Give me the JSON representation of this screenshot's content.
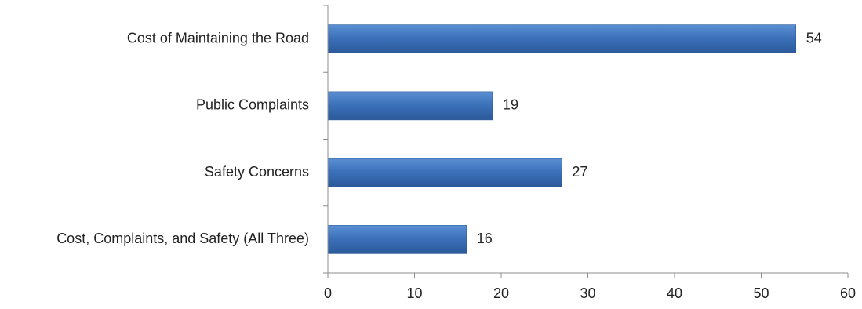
{
  "chart_data": {
    "type": "bar",
    "orientation": "horizontal",
    "title": "",
    "xlabel": "",
    "ylabel": "",
    "categories": [
      "Cost of Maintaining the Road",
      "Public Complaints",
      "Safety Concerns",
      "Cost, Complaints, and Safety (All Three)"
    ],
    "values": [
      54,
      19,
      27,
      16
    ],
    "xlim": [
      0,
      60
    ],
    "xticks": [
      0,
      10,
      20,
      30,
      40,
      50,
      60
    ],
    "grid": false,
    "legend": "none",
    "bar_color_light": "#5b8fd3",
    "bar_color": "#3a6fb8",
    "bar_color_dark": "#2c5a9a",
    "axis_color": "#8c8c8c"
  }
}
